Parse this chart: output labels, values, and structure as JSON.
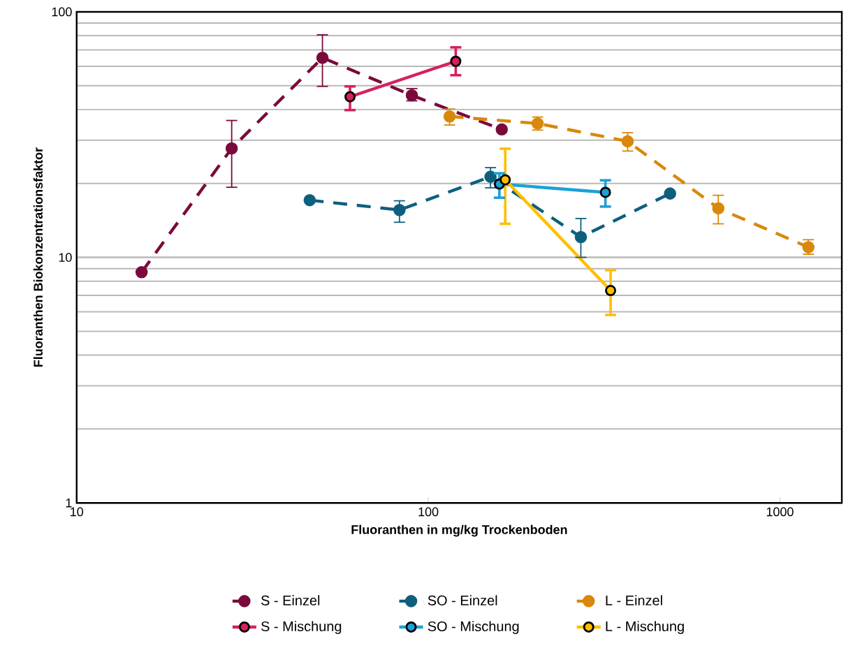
{
  "chart_data": {
    "type": "line",
    "xlabel": "Fluoranthen in mg/kg Trockenboden",
    "ylabel": "Fluoranthen Biokonzentrationsfaktor",
    "log": "xy",
    "xlim": [
      10,
      1500
    ],
    "ylim": [
      1,
      100
    ],
    "xticks": [
      10,
      100,
      1000
    ],
    "yticks": [
      1,
      10,
      100
    ],
    "grid": "y",
    "legend": "bottom",
    "marker": "circle",
    "series": [
      {
        "name": "S - Einzel",
        "color": "#7b0a3c",
        "line_style": "dashed",
        "x": [
          15.3,
          27.6,
          50,
          89.8,
          161.8
        ],
        "values": [
          8.7,
          27.8,
          65,
          45.7,
          33.2
        ],
        "errors": [
          null,
          [
            19.3,
            36.1
          ],
          [
            49.7,
            80.6
          ],
          [
            43.4,
            48.7
          ],
          null
        ]
      },
      {
        "name": "SO - Einzel",
        "color": "#0e5f7e",
        "line_style": "dashed",
        "x": [
          46,
          82.8,
          150.3,
          271.6,
          487
        ],
        "values": [
          17.1,
          15.6,
          21.3,
          12.1,
          18.2
        ],
        "errors": [
          null,
          [
            13.9,
            17.0
          ],
          [
            19.2,
            23.2
          ],
          [
            10.0,
            14.4
          ],
          null
        ]
      },
      {
        "name": "L - Einzel",
        "color": "#d9880b",
        "line_style": "dashed",
        "x": [
          115,
          204.6,
          369,
          668,
          1205
        ],
        "values": [
          37.5,
          35.1,
          29.7,
          15.85,
          11.0
        ],
        "errors": [
          [
            34.6,
            40.2
          ],
          [
            33.0,
            37.3
          ],
          [
            27.1,
            32.2
          ],
          [
            13.7,
            17.9
          ],
          [
            10.3,
            11.8
          ]
        ]
      },
      {
        "name": "S - Mischung",
        "color": "#d6205e",
        "line_style": "solid",
        "x": [
          59.9,
          119.7
        ],
        "values": [
          45.1,
          62.9
        ],
        "errors": [
          [
            39.8,
            49.7
          ],
          [
            55.2,
            71.7
          ]
        ]
      },
      {
        "name": "SO - Mischung",
        "color": "#1ba1d6",
        "line_style": "solid",
        "x": [
          159.3,
          319
        ],
        "values": [
          19.9,
          18.4
        ],
        "errors": [
          [
            17.5,
            22.0
          ],
          [
            16.1,
            20.6
          ]
        ]
      },
      {
        "name": "L - Mischung",
        "color": "#ffbf00",
        "line_style": "solid",
        "x": [
          165.5,
          330
        ],
        "values": [
          20.7,
          7.33
        ],
        "errors": [
          [
            13.7,
            27.7
          ],
          [
            5.83,
            8.87
          ]
        ]
      }
    ]
  }
}
